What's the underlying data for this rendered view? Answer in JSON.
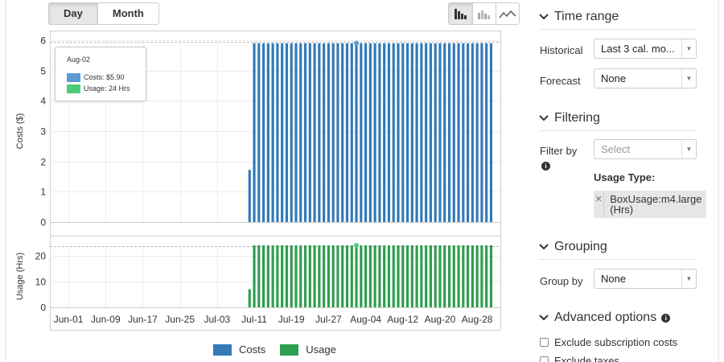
{
  "toolbar": {
    "granularity": [
      {
        "label": "Day",
        "active": true
      },
      {
        "label": "Month",
        "active": false
      }
    ],
    "chart_types": [
      {
        "icon": "bar-chart-icon",
        "active": true
      },
      {
        "icon": "stacked-bar-chart-icon",
        "active": false
      },
      {
        "icon": "line-chart-icon",
        "active": false
      }
    ]
  },
  "tooltip": {
    "date": "Aug-02",
    "costs_text": "Costs: $5.90",
    "usage_text": "Usage: 24 Hrs"
  },
  "legend": [
    {
      "label": "Costs",
      "color": "#337ab7"
    },
    {
      "label": "Usage",
      "color": "#2e9e4f"
    }
  ],
  "chart_data": [
    {
      "type": "bar",
      "ylabel": "Costs ($)",
      "ylim": [
        0,
        6
      ],
      "yticks": [
        0,
        1,
        2,
        3,
        4,
        5,
        6
      ],
      "grid": true,
      "x_tick_labels": [
        "Jun-01",
        "Jun-09",
        "Jun-17",
        "Jun-25",
        "Jul-03",
        "Jul-11",
        "Jul-19",
        "Jul-27",
        "Aug-04",
        "Aug-12",
        "Aug-20",
        "Aug-28"
      ],
      "x_start": "2017-05-28",
      "x_end": "2017-09-02",
      "series": [
        {
          "name": "Costs",
          "color": "#337ab7",
          "points": [
            [
              "Jul-10",
              1.72
            ],
            [
              "Jul-11",
              5.9
            ],
            [
              "Jul-12",
              5.9
            ],
            [
              "Jul-13",
              5.9
            ],
            [
              "Jul-14",
              5.9
            ],
            [
              "Jul-15",
              5.9
            ],
            [
              "Jul-16",
              5.9
            ],
            [
              "Jul-17",
              5.9
            ],
            [
              "Jul-18",
              5.9
            ],
            [
              "Jul-19",
              5.9
            ],
            [
              "Jul-20",
              5.9
            ],
            [
              "Jul-21",
              5.9
            ],
            [
              "Jul-22",
              5.9
            ],
            [
              "Jul-23",
              5.9
            ],
            [
              "Jul-24",
              5.9
            ],
            [
              "Jul-25",
              5.9
            ],
            [
              "Jul-26",
              5.9
            ],
            [
              "Jul-27",
              5.9
            ],
            [
              "Jul-28",
              5.9
            ],
            [
              "Jul-29",
              5.9
            ],
            [
              "Jul-30",
              5.9
            ],
            [
              "Jul-31",
              5.9
            ],
            [
              "Aug-01",
              5.9
            ],
            [
              "Aug-02",
              5.9
            ],
            [
              "Aug-03",
              5.9
            ],
            [
              "Aug-04",
              5.9
            ],
            [
              "Aug-05",
              5.9
            ],
            [
              "Aug-06",
              5.9
            ],
            [
              "Aug-07",
              5.9
            ],
            [
              "Aug-08",
              5.9
            ],
            [
              "Aug-09",
              5.9
            ],
            [
              "Aug-10",
              5.9
            ],
            [
              "Aug-11",
              5.9
            ],
            [
              "Aug-12",
              5.9
            ],
            [
              "Aug-13",
              5.9
            ],
            [
              "Aug-14",
              5.9
            ],
            [
              "Aug-15",
              5.9
            ],
            [
              "Aug-16",
              5.9
            ],
            [
              "Aug-17",
              5.9
            ],
            [
              "Aug-18",
              5.9
            ],
            [
              "Aug-19",
              5.9
            ],
            [
              "Aug-20",
              5.9
            ],
            [
              "Aug-21",
              5.9
            ],
            [
              "Aug-22",
              5.9
            ],
            [
              "Aug-23",
              5.9
            ],
            [
              "Aug-24",
              5.9
            ],
            [
              "Aug-25",
              5.9
            ],
            [
              "Aug-26",
              5.9
            ],
            [
              "Aug-27",
              5.9
            ],
            [
              "Aug-28",
              5.9
            ],
            [
              "Aug-29",
              5.9
            ],
            [
              "Aug-30",
              5.9
            ],
            [
              "Aug-31",
              5.9
            ]
          ]
        }
      ]
    },
    {
      "type": "bar",
      "ylabel": "Usage (Hrs)",
      "ylim": [
        0,
        24
      ],
      "yticks": [
        0,
        10,
        20
      ],
      "grid": true,
      "x_tick_labels": [
        "Jun-01",
        "Jun-09",
        "Jun-17",
        "Jun-25",
        "Jul-03",
        "Jul-11",
        "Jul-19",
        "Jul-27",
        "Aug-04",
        "Aug-12",
        "Aug-20",
        "Aug-28"
      ],
      "x_start": "2017-05-28",
      "x_end": "2017-09-02",
      "series": [
        {
          "name": "Usage",
          "color": "#2e9e4f",
          "points": [
            [
              "Jul-10",
              7
            ],
            [
              "Jul-11",
              24
            ],
            [
              "Jul-12",
              24
            ],
            [
              "Jul-13",
              24
            ],
            [
              "Jul-14",
              24
            ],
            [
              "Jul-15",
              24
            ],
            [
              "Jul-16",
              24
            ],
            [
              "Jul-17",
              24
            ],
            [
              "Jul-18",
              24
            ],
            [
              "Jul-19",
              24
            ],
            [
              "Jul-20",
              24
            ],
            [
              "Jul-21",
              24
            ],
            [
              "Jul-22",
              24
            ],
            [
              "Jul-23",
              24
            ],
            [
              "Jul-24",
              24
            ],
            [
              "Jul-25",
              24
            ],
            [
              "Jul-26",
              24
            ],
            [
              "Jul-27",
              24
            ],
            [
              "Jul-28",
              24
            ],
            [
              "Jul-29",
              24
            ],
            [
              "Jul-30",
              24
            ],
            [
              "Jul-31",
              24
            ],
            [
              "Aug-01",
              24
            ],
            [
              "Aug-02",
              24
            ],
            [
              "Aug-03",
              24
            ],
            [
              "Aug-04",
              24
            ],
            [
              "Aug-05",
              24
            ],
            [
              "Aug-06",
              24
            ],
            [
              "Aug-07",
              24
            ],
            [
              "Aug-08",
              24
            ],
            [
              "Aug-09",
              24
            ],
            [
              "Aug-10",
              24
            ],
            [
              "Aug-11",
              24
            ],
            [
              "Aug-12",
              24
            ],
            [
              "Aug-13",
              24
            ],
            [
              "Aug-14",
              24
            ],
            [
              "Aug-15",
              24
            ],
            [
              "Aug-16",
              24
            ],
            [
              "Aug-17",
              24
            ],
            [
              "Aug-18",
              24
            ],
            [
              "Aug-19",
              24
            ],
            [
              "Aug-20",
              24
            ],
            [
              "Aug-21",
              24
            ],
            [
              "Aug-22",
              24
            ],
            [
              "Aug-23",
              24
            ],
            [
              "Aug-24",
              24
            ],
            [
              "Aug-25",
              24
            ],
            [
              "Aug-26",
              24
            ],
            [
              "Aug-27",
              24
            ],
            [
              "Aug-28",
              24
            ],
            [
              "Aug-29",
              24
            ],
            [
              "Aug-30",
              24
            ],
            [
              "Aug-31",
              24
            ]
          ]
        }
      ]
    }
  ],
  "panel": {
    "time_range": {
      "title": "Time range",
      "historical_label": "Historical",
      "historical_value": "Last 3 cal. mo...",
      "forecast_label": "Forecast",
      "forecast_value": "None"
    },
    "filtering": {
      "title": "Filtering",
      "filter_by_label": "Filter by",
      "filter_placeholder": "Select",
      "usage_type_label": "Usage Type:",
      "usage_type_tag": "BoxUsage:m4.large (Hrs)"
    },
    "grouping": {
      "title": "Grouping",
      "group_by_label": "Group by",
      "group_by_value": "None"
    },
    "advanced": {
      "title": "Advanced options",
      "options": [
        {
          "label": "Exclude subscription costs",
          "checked": false
        },
        {
          "label": "Exclude taxes",
          "checked": false
        }
      ]
    }
  }
}
